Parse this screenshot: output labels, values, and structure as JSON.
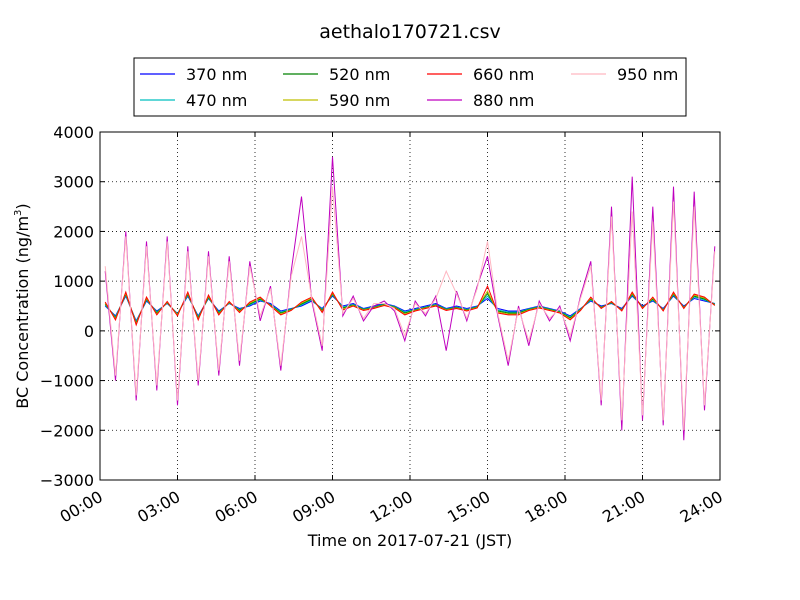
{
  "chart_data": {
    "type": "line",
    "title": "aethalo170721.csv",
    "xlabel": "Time on 2017-07-21 (JST)",
    "ylabel_text": "BC Concentration (ng/m",
    "ylabel_sup": "3",
    "ylabel_close": ")",
    "xlim": [
      0,
      24
    ],
    "ylim": [
      -3000,
      4000
    ],
    "x_ticks": [
      0,
      3,
      6,
      9,
      12,
      15,
      18,
      21,
      24
    ],
    "x_tick_labels": [
      "00:00",
      "03:00",
      "06:00",
      "09:00",
      "12:00",
      "15:00",
      "18:00",
      "21:00",
      "24:00"
    ],
    "y_ticks": [
      -3000,
      -2000,
      -1000,
      0,
      1000,
      2000,
      3000,
      4000
    ],
    "y_tick_labels": [
      "−3000",
      "−2000",
      "−1000",
      "0",
      "1000",
      "2000",
      "3000",
      "4000"
    ],
    "grid": true,
    "legend_position": "top-center, above plot",
    "x": [
      0.2,
      0.6,
      1.0,
      1.4,
      1.8,
      2.2,
      2.6,
      3.0,
      3.4,
      3.8,
      4.2,
      4.6,
      5.0,
      5.4,
      5.8,
      6.2,
      6.6,
      7.0,
      7.4,
      7.8,
      8.2,
      8.6,
      9.0,
      9.4,
      9.8,
      10.2,
      10.6,
      11.0,
      11.4,
      11.8,
      12.2,
      12.6,
      13.0,
      13.4,
      13.8,
      14.2,
      14.6,
      15.0,
      15.4,
      15.8,
      16.2,
      16.6,
      17.0,
      17.4,
      17.8,
      18.2,
      18.6,
      19.0,
      19.4,
      19.8,
      20.2,
      20.6,
      21.0,
      21.4,
      21.8,
      22.2,
      22.6,
      23.0,
      23.4,
      23.8
    ],
    "series": [
      {
        "name": "370 nm",
        "color": "#0000ff",
        "values": [
          500,
          300,
          700,
          200,
          600,
          400,
          550,
          350,
          700,
          300,
          650,
          400,
          550,
          450,
          500,
          600,
          550,
          400,
          450,
          500,
          600,
          450,
          700,
          500,
          550,
          450,
          500,
          550,
          500,
          400,
          450,
          500,
          550,
          450,
          500,
          450,
          500,
          650,
          450,
          400,
          400,
          450,
          500,
          450,
          400,
          300,
          450,
          600,
          500,
          550,
          450,
          700,
          500,
          600,
          450,
          700,
          500,
          650,
          600,
          550
        ]
      },
      {
        "name": "470 nm",
        "color": "#00bfbf",
        "values": [
          520,
          280,
          720,
          180,
          620,
          380,
          560,
          340,
          720,
          280,
          660,
          380,
          560,
          430,
          520,
          620,
          530,
          380,
          440,
          520,
          620,
          430,
          720,
          480,
          530,
          440,
          480,
          540,
          490,
          380,
          430,
          480,
          530,
          440,
          480,
          430,
          490,
          700,
          420,
          380,
          380,
          440,
          490,
          440,
          390,
          280,
          440,
          620,
          480,
          560,
          430,
          720,
          480,
          620,
          430,
          720,
          480,
          680,
          620,
          540
        ]
      },
      {
        "name": "520 nm",
        "color": "#008000",
        "values": [
          540,
          260,
          740,
          160,
          640,
          360,
          570,
          330,
          740,
          260,
          680,
          360,
          570,
          410,
          540,
          640,
          520,
          360,
          430,
          540,
          640,
          410,
          740,
          460,
          520,
          430,
          470,
          530,
          480,
          360,
          420,
          470,
          520,
          430,
          470,
          420,
          480,
          750,
          400,
          360,
          360,
          430,
          480,
          430,
          380,
          260,
          430,
          640,
          470,
          570,
          420,
          740,
          470,
          640,
          420,
          740,
          470,
          700,
          640,
          530
        ]
      },
      {
        "name": "590 nm",
        "color": "#bfbf00",
        "values": [
          560,
          240,
          760,
          140,
          660,
          340,
          580,
          320,
          760,
          240,
          700,
          340,
          580,
          390,
          560,
          660,
          510,
          340,
          420,
          560,
          660,
          390,
          760,
          440,
          510,
          420,
          460,
          520,
          470,
          340,
          410,
          460,
          510,
          420,
          460,
          410,
          470,
          800,
          380,
          340,
          340,
          420,
          470,
          420,
          370,
          240,
          420,
          660,
          460,
          580,
          410,
          760,
          460,
          660,
          410,
          760,
          460,
          720,
          660,
          520
        ]
      },
      {
        "name": "660 nm",
        "color": "#ff0000",
        "values": [
          580,
          220,
          780,
          120,
          680,
          320,
          590,
          300,
          780,
          220,
          720,
          320,
          590,
          370,
          580,
          680,
          500,
          320,
          410,
          580,
          680,
          370,
          780,
          420,
          500,
          410,
          450,
          510,
          460,
          320,
          400,
          450,
          500,
          410,
          450,
          400,
          460,
          900,
          360,
          320,
          320,
          410,
          460,
          410,
          360,
          220,
          410,
          680,
          450,
          590,
          400,
          780,
          450,
          680,
          400,
          780,
          450,
          740,
          680,
          510
        ]
      },
      {
        "name": "880 nm",
        "color": "#bf00bf",
        "values": [
          1200,
          -1000,
          2000,
          -1400,
          1800,
          -1200,
          1900,
          -1500,
          1700,
          -1100,
          1600,
          -900,
          1500,
          -700,
          1400,
          200,
          900,
          -800,
          1200,
          2700,
          600,
          -400,
          3500,
          300,
          700,
          200,
          500,
          600,
          400,
          -200,
          600,
          300,
          700,
          -400,
          800,
          200,
          900,
          1500,
          300,
          -700,
          500,
          -300,
          600,
          200,
          500,
          -200,
          700,
          1400,
          -1500,
          2500,
          -2000,
          3100,
          -1800,
          2500,
          -1900,
          2900,
          -2200,
          2800,
          -1600,
          1700
        ]
      },
      {
        "name": "950 nm",
        "color": "#ffb6c1",
        "values": [
          1300,
          -900,
          1900,
          -1300,
          1700,
          -1100,
          1800,
          -1400,
          1600,
          -1000,
          1500,
          -800,
          1400,
          -600,
          1300,
          300,
          850,
          -700,
          1100,
          1900,
          650,
          -300,
          2900,
          350,
          650,
          250,
          550,
          550,
          450,
          -100,
          550,
          350,
          650,
          1200,
          750,
          250,
          850,
          1800,
          350,
          -600,
          450,
          -200,
          550,
          250,
          450,
          -100,
          650,
          1300,
          -1400,
          2300,
          -1800,
          2400,
          -1700,
          2200,
          -1800,
          2600,
          -2000,
          2500,
          -1500,
          1600
        ]
      }
    ]
  }
}
